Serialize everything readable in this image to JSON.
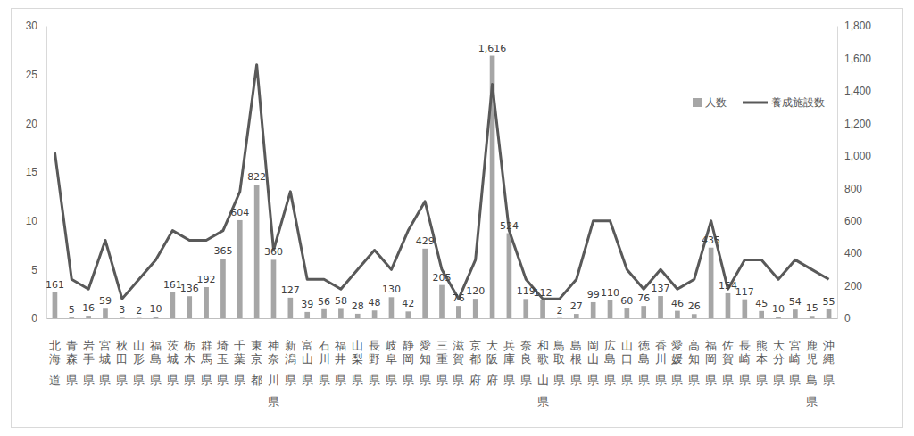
{
  "chart_data": {
    "type": "bar",
    "categories": [
      "北海道",
      "青森県",
      "岩手県",
      "宮城県",
      "秋田県",
      "山形県",
      "福島県",
      "茨城県",
      "栃木県",
      "群馬県",
      "埼玉県",
      "千葉県",
      "東京都",
      "神奈川県",
      "新潟県",
      "富山県",
      "石川県",
      "福井県",
      "山梨県",
      "長野県",
      "岐阜県",
      "静岡県",
      "愛知県",
      "三重県",
      "滋賀県",
      "京都府",
      "大阪府",
      "兵庫県",
      "奈良県",
      "和歌山県",
      "鳥取県",
      "島根県",
      "岡山県",
      "広島県",
      "山口県",
      "徳島県",
      "香川県",
      "愛媛県",
      "高知県",
      "福岡県",
      "佐賀県",
      "長崎県",
      "熊本県",
      "大分県",
      "宮崎県",
      "鹿児島県",
      "沖縄県"
    ],
    "series": [
      {
        "name": "人数",
        "type": "bar",
        "axis": "y2",
        "color": "#a6a6a6",
        "data_labels": true,
        "values": [
          161,
          5,
          16,
          59,
          3,
          2,
          10,
          161,
          136,
          192,
          365,
          604,
          822,
          360,
          127,
          39,
          56,
          58,
          28,
          48,
          130,
          42,
          429,
          205,
          76,
          120,
          1616,
          524,
          119,
          112,
          2,
          27,
          99,
          110,
          60,
          76,
          137,
          46,
          26,
          435,
          154,
          117,
          45,
          10,
          54,
          15,
          55
        ],
        "value_labels": [
          "161",
          "5",
          "16",
          "59",
          "3",
          "2",
          "10",
          "161",
          "136",
          "192",
          "365",
          "604",
          "822",
          "360",
          "127",
          "39",
          "56",
          "58",
          "28",
          "48",
          "130",
          "42",
          "429",
          "205",
          "76",
          "120",
          "1,616",
          "524",
          "119",
          "112",
          "2",
          "27",
          "99",
          "110",
          "60",
          "76",
          "137",
          "46",
          "26",
          "435",
          "154",
          "117",
          "45",
          "10",
          "54",
          "15",
          "55"
        ]
      },
      {
        "name": "養成施設数",
        "type": "line",
        "color": "#595959",
        "values": [
          17,
          4,
          3,
          8,
          2,
          4,
          6,
          9,
          8,
          8,
          9,
          13,
          26,
          7,
          13,
          4,
          4,
          3,
          5,
          7,
          5,
          9,
          12,
          5,
          2,
          6,
          24,
          9,
          4,
          2,
          2,
          4,
          10,
          10,
          5,
          3,
          5,
          3,
          4,
          10,
          3,
          6,
          6,
          4,
          6,
          5,
          4
        ]
      }
    ],
    "ylim": [
      0,
      30
    ],
    "yticks": [
      0,
      5,
      10,
      15,
      20,
      25,
      30
    ],
    "y2lim": [
      0,
      1800
    ],
    "y2ticks": [
      0,
      200,
      400,
      600,
      800,
      {
        "value": 1000,
        "label": "1,000"
      },
      {
        "value": 1200,
        "label": "1,200"
      },
      {
        "value": 1400,
        "label": "1,400"
      },
      {
        "value": 1600,
        "label": "1,600"
      },
      {
        "value": 1800,
        "label": "1,800"
      }
    ],
    "legend": "upper right",
    "grid": false
  }
}
